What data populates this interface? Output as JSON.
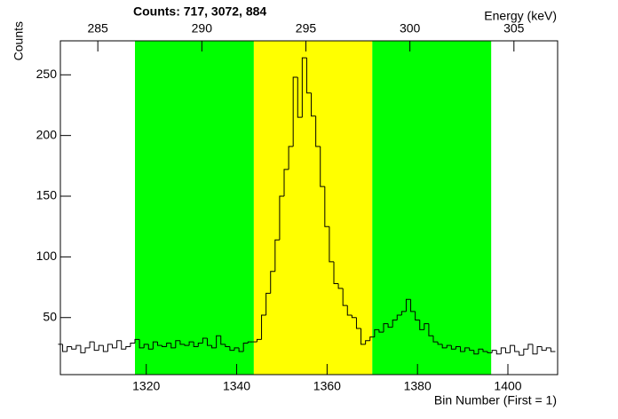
{
  "chart_data": {
    "type": "histogram",
    "title": "Counts:   717,   3072,   884",
    "y_label": "Counts",
    "x_label": "Bin Number (First = 1)",
    "x2_label": "Energy (keV)",
    "xlim": [
      1301,
      1411
    ],
    "xticks": [
      1320,
      1340,
      1360,
      1380,
      1400
    ],
    "x2lim": [
      283.2,
      307.1
    ],
    "x2ticks": [
      285,
      290,
      295,
      300,
      305
    ],
    "ylim": [
      3,
      278
    ],
    "yticks": [
      50,
      100,
      150,
      200,
      250
    ],
    "color": "#000000",
    "regions": [
      {
        "from": 1317.5,
        "to": 1343.8,
        "color": "#00ff00"
      },
      {
        "from": 1343.8,
        "to": 1370,
        "color": "#ffff00"
      },
      {
        "from": 1370,
        "to": 1396.3,
        "color": "#00ff00"
      }
    ],
    "x": [
      1301,
      1302,
      1303,
      1304,
      1305,
      1306,
      1307,
      1308,
      1309,
      1310,
      1311,
      1312,
      1313,
      1314,
      1315,
      1316,
      1317,
      1318,
      1319,
      1320,
      1321,
      1322,
      1323,
      1324,
      1325,
      1326,
      1327,
      1328,
      1329,
      1330,
      1331,
      1332,
      1333,
      1334,
      1335,
      1336,
      1337,
      1338,
      1339,
      1340,
      1341,
      1342,
      1343,
      1344,
      1345,
      1346,
      1347,
      1348,
      1349,
      1350,
      1351,
      1352,
      1353,
      1354,
      1355,
      1356,
      1357,
      1358,
      1359,
      1360,
      1361,
      1362,
      1363,
      1364,
      1365,
      1366,
      1367,
      1368,
      1369,
      1370,
      1371,
      1372,
      1373,
      1374,
      1375,
      1376,
      1377,
      1378,
      1379,
      1380,
      1381,
      1382,
      1383,
      1384,
      1385,
      1386,
      1387,
      1388,
      1389,
      1390,
      1391,
      1392,
      1393,
      1394,
      1395,
      1396,
      1397,
      1398,
      1399,
      1400,
      1401,
      1402,
      1403,
      1404,
      1405,
      1406,
      1407,
      1408,
      1409,
      1410
    ],
    "values": [
      28,
      22,
      26,
      24,
      27,
      21,
      25,
      30,
      23,
      27,
      22,
      28,
      25,
      31,
      24,
      26,
      29,
      32,
      25,
      28,
      24,
      30,
      27,
      26,
      29,
      25,
      31,
      28,
      27,
      30,
      26,
      29,
      33,
      27,
      25,
      35,
      28,
      26,
      23,
      25,
      22,
      29,
      30,
      30,
      32,
      52,
      70,
      88,
      114,
      150,
      172,
      191,
      248,
      215,
      264,
      235,
      216,
      191,
      158,
      125,
      96,
      78,
      74,
      60,
      52,
      50,
      41,
      28,
      31,
      34,
      40,
      38,
      45,
      42,
      48,
      52,
      55,
      65,
      55,
      48,
      40,
      45,
      35,
      30,
      28,
      25,
      27,
      24,
      26,
      22,
      25,
      23,
      20,
      24,
      22,
      21,
      23,
      20,
      25,
      21,
      27,
      22,
      19,
      24,
      28,
      20,
      26,
      23,
      25,
      22
    ]
  }
}
